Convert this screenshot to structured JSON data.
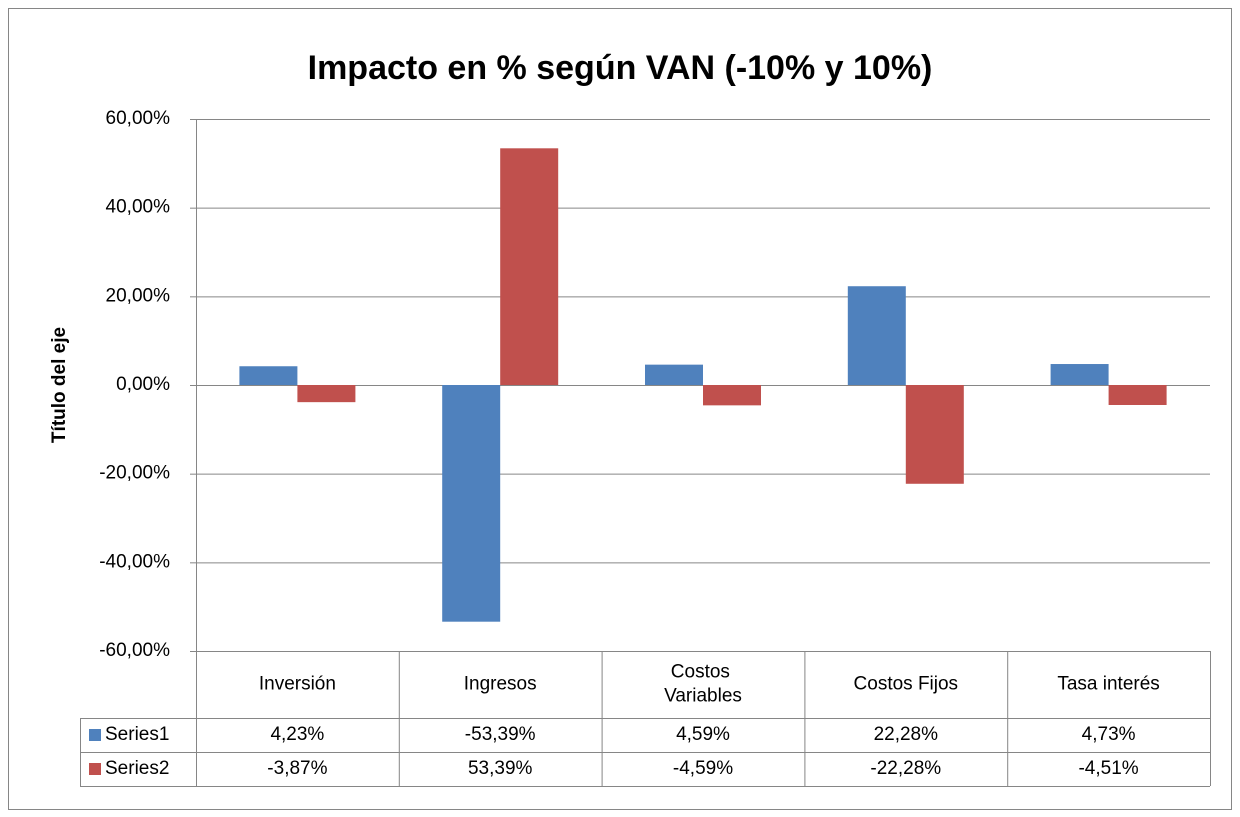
{
  "chart_data": {
    "type": "bar",
    "title": "Impacto en % según VAN (-10% y 10%)",
    "y_label": "Título del eje",
    "categories": [
      "Inversión",
      "Ingresos",
      "Costos Variables",
      "Costos Fijos",
      "Tasa interés"
    ],
    "series": [
      {
        "name": "Series1",
        "color": "#4f81bd",
        "values": [
          4.23,
          -53.39,
          4.59,
          22.28,
          4.73
        ],
        "value_labels": [
          "4,23%",
          "-53,39%",
          "4,59%",
          "22,28%",
          "4,73%"
        ]
      },
      {
        "name": "Series2",
        "color": "#c0504d",
        "values": [
          -3.87,
          53.39,
          -4.59,
          -22.28,
          -4.51
        ],
        "value_labels": [
          "-3,87%",
          "53,39%",
          "-4,59%",
          "-22,28%",
          "-4,51%"
        ]
      }
    ],
    "ylim": [
      -60,
      60
    ],
    "yticks": [
      {
        "value": -60,
        "label": "-60,00%"
      },
      {
        "value": -40,
        "label": "-40,00%"
      },
      {
        "value": -20,
        "label": "-20,00%"
      },
      {
        "value": 0,
        "label": "0,00%"
      },
      {
        "value": 20,
        "label": "20,00%"
      },
      {
        "value": 40,
        "label": "40,00%"
      },
      {
        "value": 60,
        "label": "60,00%"
      }
    ],
    "grid": true,
    "data_table": true
  }
}
